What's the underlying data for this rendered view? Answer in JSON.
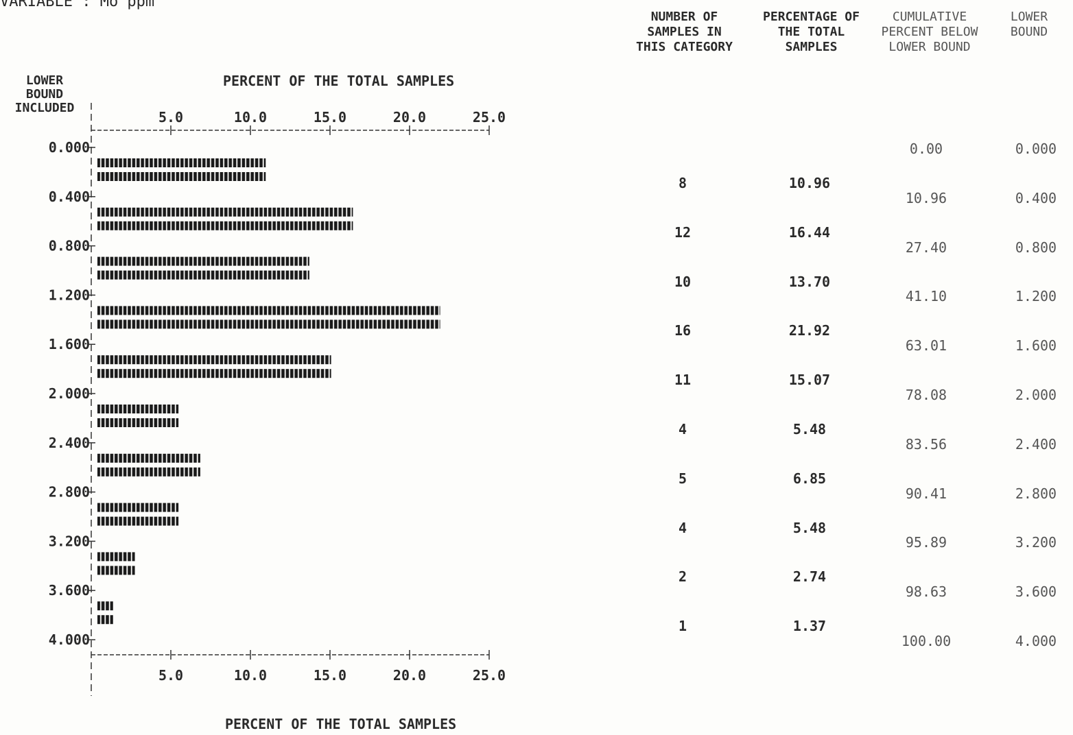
{
  "variable_label": "VARIABLE : Mo ppm",
  "chart_data": {
    "type": "bar",
    "orientation": "horizontal",
    "title": "PERCENT OF THE TOTAL SAMPLES",
    "xlabel": "PERCENT OF THE TOTAL SAMPLES",
    "ylabel": "LOWER BOUND INCLUDED",
    "xlim": [
      0,
      25
    ],
    "x_ticks": [
      "5.0",
      "10.0",
      "15.0",
      "20.0",
      "25.0"
    ],
    "lower_bounds": [
      "0.000",
      "0.400",
      "0.800",
      "1.200",
      "1.600",
      "2.000",
      "2.400",
      "2.800",
      "3.200",
      "3.600",
      "4.000"
    ],
    "categories": [
      "0.000",
      "0.400",
      "0.800",
      "1.200",
      "1.600",
      "2.000",
      "2.400",
      "2.800",
      "3.200",
      "3.600"
    ],
    "values": [
      10.96,
      16.44,
      13.7,
      21.92,
      15.07,
      5.48,
      6.85,
      5.48,
      2.74,
      1.37
    ],
    "bar_symbol": "#"
  },
  "table": {
    "headers": {
      "count": "NUMBER OF\nSAMPLES IN\nTHIS CATEGORY",
      "percent": "PERCENTAGE OF\nTHE TOTAL\nSAMPLES",
      "cumulative": "CUMULATIVE\nPERCENT BELOW\nLOWER BOUND",
      "lower": "LOWER\nBOUND"
    },
    "category_rows": [
      {
        "count": "8",
        "percent": "10.96"
      },
      {
        "count": "12",
        "percent": "16.44"
      },
      {
        "count": "10",
        "percent": "13.70"
      },
      {
        "count": "16",
        "percent": "21.92"
      },
      {
        "count": "11",
        "percent": "15.07"
      },
      {
        "count": "4",
        "percent": "5.48"
      },
      {
        "count": "5",
        "percent": "6.85"
      },
      {
        "count": "4",
        "percent": "5.48"
      },
      {
        "count": "2",
        "percent": "2.74"
      },
      {
        "count": "1",
        "percent": "1.37"
      }
    ],
    "bound_rows": [
      {
        "cumulative": "0.00",
        "lower": "0.000"
      },
      {
        "cumulative": "10.96",
        "lower": "0.400"
      },
      {
        "cumulative": "27.40",
        "lower": "0.800"
      },
      {
        "cumulative": "41.10",
        "lower": "1.200"
      },
      {
        "cumulative": "63.01",
        "lower": "1.600"
      },
      {
        "cumulative": "78.08",
        "lower": "2.000"
      },
      {
        "cumulative": "83.56",
        "lower": "2.400"
      },
      {
        "cumulative": "90.41",
        "lower": "2.800"
      },
      {
        "cumulative": "95.89",
        "lower": "3.200"
      },
      {
        "cumulative": "98.63",
        "lower": "3.600"
      },
      {
        "cumulative": "100.00",
        "lower": "4.000"
      }
    ]
  }
}
